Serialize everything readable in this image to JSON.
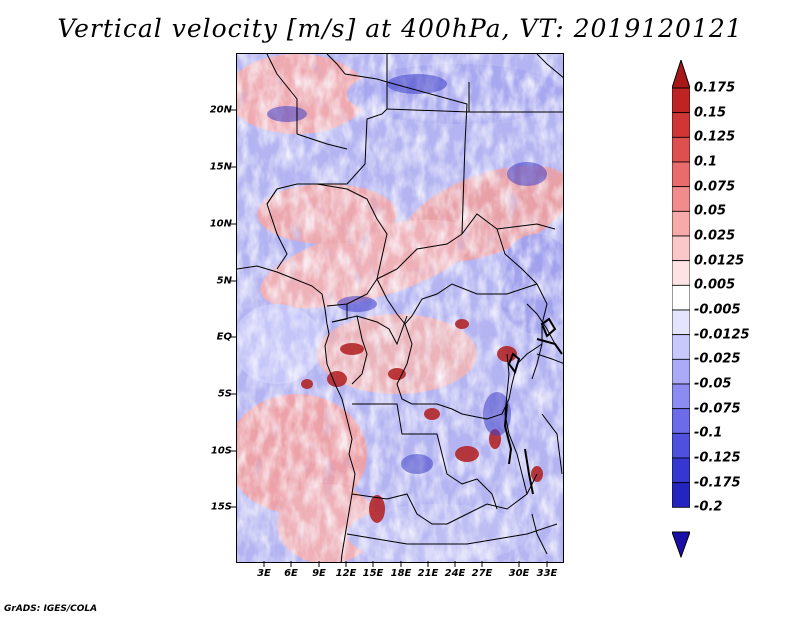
{
  "title": "Vertical velocity [m/s] at 400hPa, VT: 2019120121",
  "map": {
    "lon_range": [
      0,
      36
    ],
    "lat_range": [
      -20,
      24.5
    ],
    "lat_ticks": [
      {
        "value": 20,
        "label": "20N"
      },
      {
        "value": 15,
        "label": "15N"
      },
      {
        "value": 10,
        "label": "10N"
      },
      {
        "value": 5,
        "label": "5N"
      },
      {
        "value": 0,
        "label": "EQ"
      },
      {
        "value": -5,
        "label": "5S"
      },
      {
        "value": -10,
        "label": "10S"
      },
      {
        "value": -15,
        "label": "15S"
      }
    ],
    "lon_ticks": [
      {
        "value": 3,
        "label": "3E"
      },
      {
        "value": 6,
        "label": "6E"
      },
      {
        "value": 9,
        "label": "9E"
      },
      {
        "value": 12,
        "label": "12E"
      },
      {
        "value": 15,
        "label": "15E"
      },
      {
        "value": 18,
        "label": "18E"
      },
      {
        "value": 21,
        "label": "21E"
      },
      {
        "value": 24,
        "label": "24E"
      },
      {
        "value": 27,
        "label": "27E"
      },
      {
        "value": 30,
        "label": "30E"
      },
      {
        "value": 33,
        "label": "33E"
      }
    ]
  },
  "colorbar": {
    "levels": [
      {
        "label": "0.175",
        "color": "#a81818"
      },
      {
        "label": "0.15",
        "color": "#be2424"
      },
      {
        "label": "0.125",
        "color": "#d03636"
      },
      {
        "label": "0.1",
        "color": "#de5050"
      },
      {
        "label": "0.075",
        "color": "#e86c6c"
      },
      {
        "label": "0.05",
        "color": "#f08c8c"
      },
      {
        "label": "0.025",
        "color": "#f6aaaa"
      },
      {
        "label": "0.0125",
        "color": "#fac8c8"
      },
      {
        "label": "0.005",
        "color": "#fde4e4"
      },
      {
        "label": "-0.005",
        "color": "#ffffff"
      },
      {
        "label": "-0.0125",
        "color": "#e4e4fd"
      },
      {
        "label": "-0.025",
        "color": "#c8c8fa"
      },
      {
        "label": "-0.05",
        "color": "#aaaaf6"
      },
      {
        "label": "-0.075",
        "color": "#8c8cf0"
      },
      {
        "label": "-0.1",
        "color": "#6c6ce8"
      },
      {
        "label": "-0.125",
        "color": "#5050de"
      },
      {
        "label": "-0.175",
        "color": "#3636d0"
      },
      {
        "label": "-0.2",
        "color": "#2424be"
      }
    ],
    "top_arrow_color": "#a81818",
    "bottom_arrow_color": "#1a10a8"
  },
  "credit": "GrADS: IGES/COLA"
}
